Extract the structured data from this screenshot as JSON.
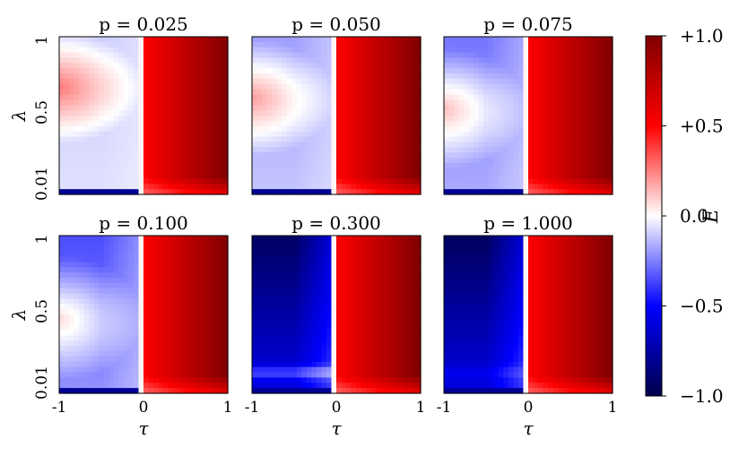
{
  "chart_data": {
    "type": "heatmap",
    "layout": "2x3 grid of heatmap panels",
    "panels": [
      {
        "title": "p = 0.025",
        "p": 0.025
      },
      {
        "title": "p = 0.050",
        "p": 0.05
      },
      {
        "title": "p = 0.075",
        "p": 0.075
      },
      {
        "title": "p = 0.100",
        "p": 0.1
      },
      {
        "title": "p = 0.300",
        "p": 0.3
      },
      {
        "title": "p = 1.000",
        "p": 1.0
      }
    ],
    "x": {
      "label": "τ",
      "range": [
        -1,
        1
      ],
      "ticks": [
        "-1",
        "0",
        "1"
      ]
    },
    "y": {
      "label": "λ",
      "range": [
        0.01,
        1
      ],
      "ticks": [
        "0.01",
        "0.5",
        "1"
      ]
    },
    "colorbar": {
      "label": "E",
      "range": [
        -1.0,
        1.0
      ],
      "ticks": [
        "+1.0",
        "+0.5",
        "0.0",
        "−0.5",
        "−1.0"
      ],
      "tick_values": [
        1.0,
        0.5,
        0.0,
        -0.5,
        -1.0
      ],
      "colormap": "seismic",
      "colors": {
        "low": "#00004c",
        "blue": "#0000ff",
        "mid": "#ffffff",
        "red": "#ff0000",
        "high": "#800000"
      }
    }
  }
}
